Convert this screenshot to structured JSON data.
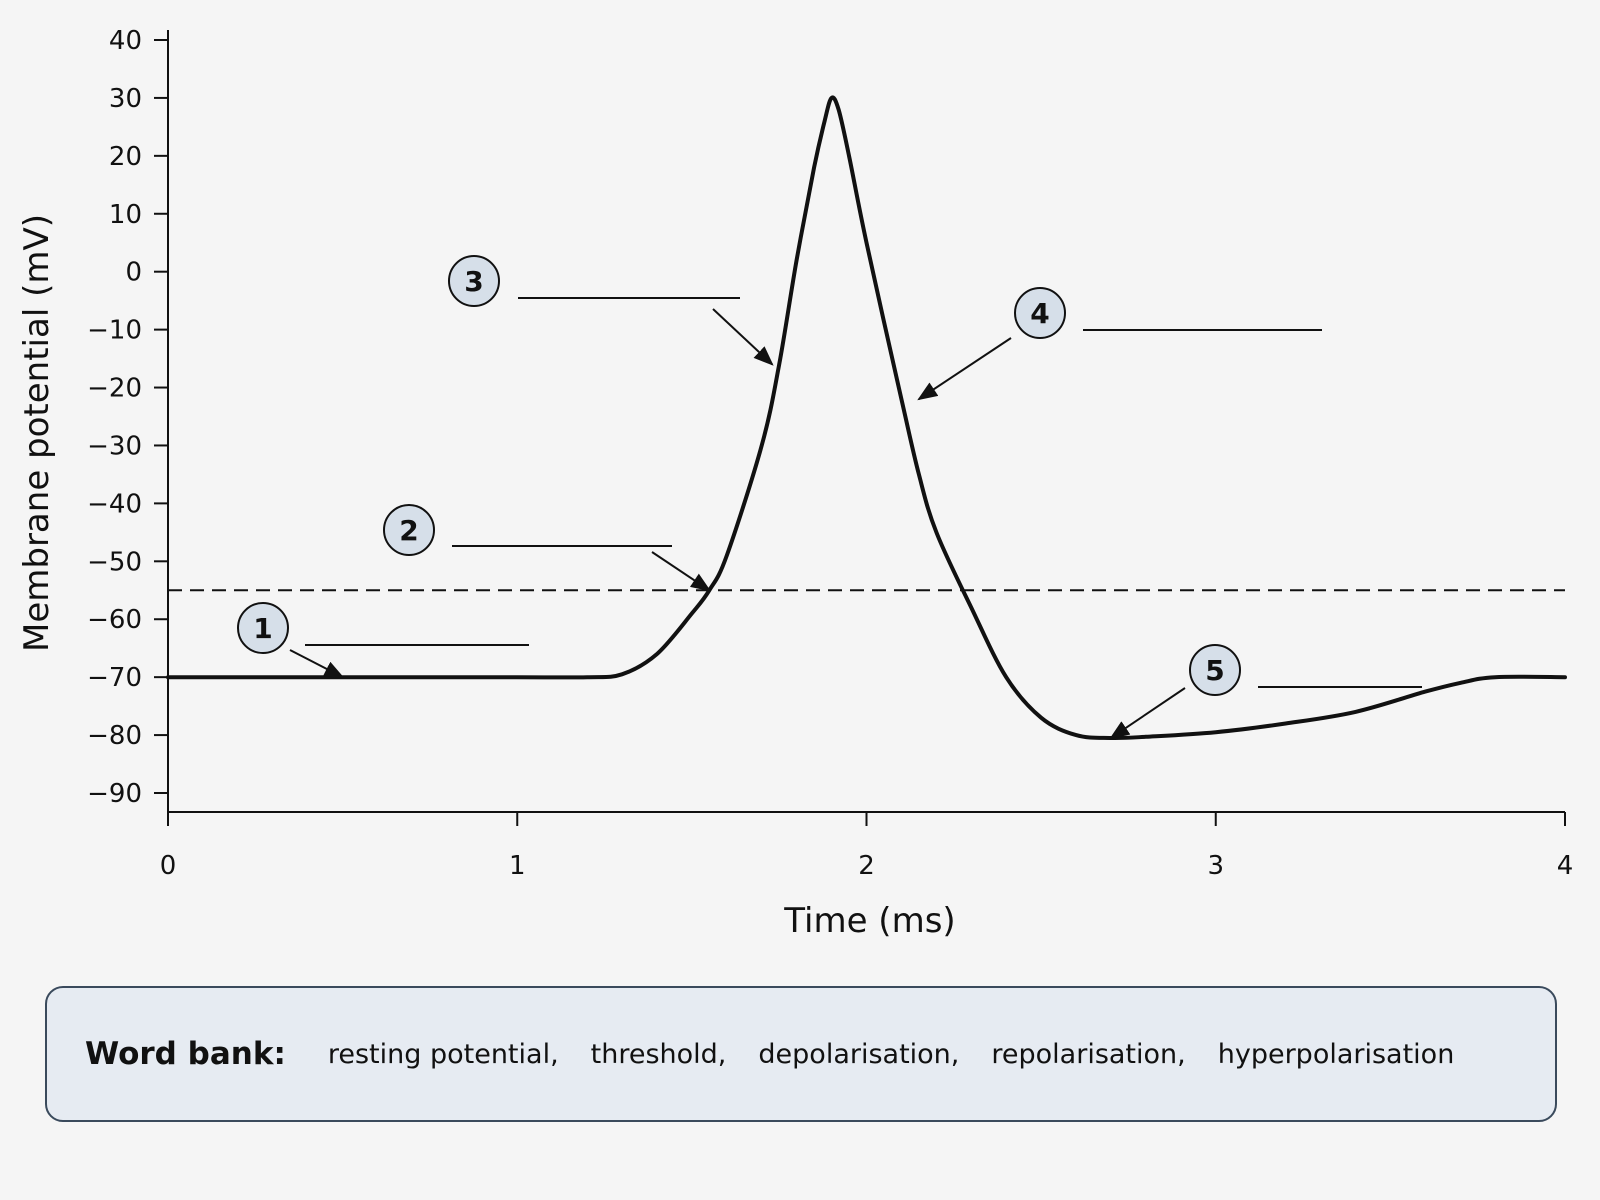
{
  "chart_data": {
    "type": "line",
    "title": "",
    "xlabel": "Time (ms)",
    "ylabel": "Membrane potential (mV)",
    "xlim": [
      0,
      4
    ],
    "ylim": [
      -90,
      40
    ],
    "x_ticks": [
      "0",
      "1",
      "2",
      "3",
      "4"
    ],
    "y_ticks": [
      "40",
      "30",
      "20",
      "10",
      "0",
      "−10",
      "−20",
      "−30",
      "−40",
      "−50",
      "−60",
      "−70",
      "−80",
      "−90"
    ],
    "grid": false,
    "legend": "none",
    "series": [
      {
        "x": [
          0,
          0.5,
          1.0,
          1.2,
          1.3,
          1.4,
          1.5,
          1.55,
          1.6,
          1.7,
          1.75,
          1.8,
          1.85,
          1.88,
          1.9,
          1.92,
          1.95,
          2.0,
          2.1,
          2.15,
          2.2,
          2.3,
          2.4,
          2.5,
          2.6,
          2.7,
          2.8,
          3.0,
          3.2,
          3.4,
          3.6,
          3.7,
          3.8,
          4.0
        ],
        "y": [
          -70,
          -70,
          -70,
          -70,
          -69.5,
          -66,
          -59,
          -55,
          -49,
          -30,
          -16,
          2,
          18,
          26,
          30,
          28,
          20,
          5,
          -22,
          -35,
          -45,
          -58,
          -70,
          -77,
          -80,
          -80.5,
          -80.3,
          -79.5,
          -78,
          -76,
          -72.5,
          -71,
          -70,
          -70
        ]
      }
    ],
    "annotations": [
      {
        "label": "1",
        "x": 0.5,
        "y": -70
      },
      {
        "label": "2",
        "x": 1.55,
        "y": -55
      },
      {
        "label": "3",
        "x": 1.73,
        "y": -16
      },
      {
        "label": "4",
        "x": 2.15,
        "y": -22
      },
      {
        "label": "5",
        "x": 2.7,
        "y": -80.5
      }
    ],
    "threshold_line_y": -55,
    "line_color": "#111111",
    "marker_fill": "#d6dfe9"
  },
  "word_bank": {
    "title": "Word bank:",
    "words": [
      "resting potential,",
      "threshold,",
      "depolarisation,",
      "repolarisation,",
      "hyperpolarisation"
    ]
  }
}
